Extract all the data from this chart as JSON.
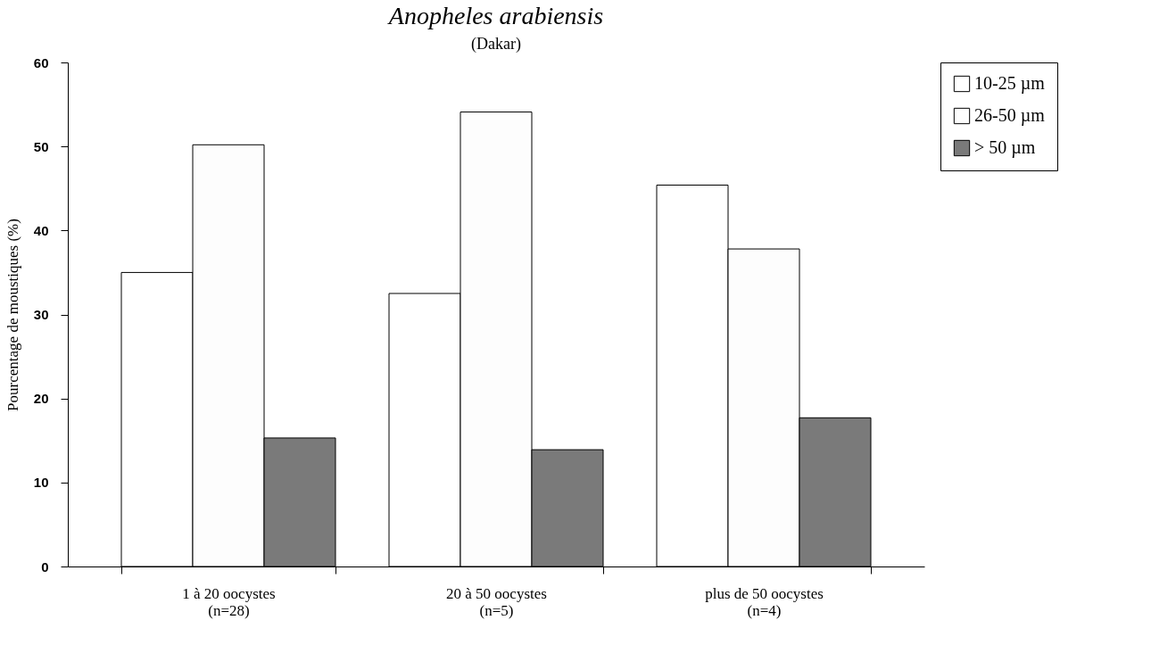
{
  "chart_data": {
    "type": "bar",
    "title": "Anopheles arabiensis",
    "subtitle": "(Dakar)",
    "ylabel": "Pourcentage de moustiques (%)",
    "categories": [
      "1 à 20 oocystes\n(n=28)",
      "20 à 50 oocystes\n(n=5)",
      "plus de 50 oocystes\n(n=4)"
    ],
    "series": [
      {
        "name": "10-25 µm",
        "color": "#ffffff",
        "values": [
          35,
          32.5,
          45.4
        ]
      },
      {
        "name": "26-50 µm",
        "color": "#fdfdfd",
        "values": [
          50.2,
          54.1,
          37.8
        ]
      },
      {
        "name": "> 50 µm",
        "color": "#7a7a7a",
        "values": [
          15.3,
          13.9,
          17.7
        ]
      }
    ],
    "ylim": [
      0,
      60
    ],
    "yticks": [
      0,
      10,
      20,
      30,
      40,
      50,
      60
    ],
    "grid": false,
    "legend": "right"
  }
}
